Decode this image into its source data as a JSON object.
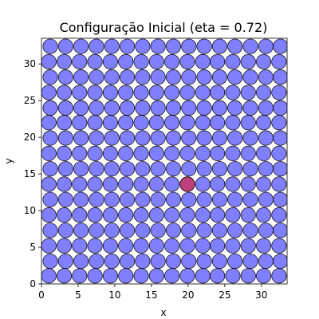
{
  "chart_data": {
    "type": "scatter",
    "title": "Configuração Inicial (eta = 0.72)",
    "xlabel": "x",
    "ylabel": "y",
    "xlim": [
      0,
      33.5
    ],
    "ylim": [
      0,
      33.5
    ],
    "xticks": [
      0,
      5,
      10,
      15,
      20,
      25,
      30
    ],
    "yticks": [
      0,
      5,
      10,
      15,
      20,
      25,
      30
    ],
    "grid": false,
    "particle_diameter": 2.0,
    "lattice": {
      "rows": 16,
      "cols": 16,
      "y_values": [
        1.1,
        3.1,
        5.2,
        7.3,
        9.4,
        11.5,
        13.6,
        15.7,
        17.8,
        19.9,
        22.0,
        24.0,
        26.1,
        28.2,
        30.3,
        32.4
      ],
      "x_even_rows": [
        1.0,
        3.1,
        5.2,
        7.3,
        9.4,
        11.5,
        13.6,
        15.7,
        17.8,
        19.9,
        22.0,
        24.0,
        26.1,
        28.2,
        30.3,
        32.4
      ],
      "x_odd_rows": [
        1.2,
        3.3,
        5.4,
        7.5,
        9.6,
        11.7,
        13.8,
        15.9,
        18.0,
        20.1,
        22.2,
        24.3,
        26.4,
        28.5,
        30.6,
        32.6
      ]
    },
    "highlighted": {
      "x": 19.9,
      "y": 13.6
    },
    "colors": {
      "particle": "#0000ff",
      "highlight": "#ff0000",
      "particle_opacity": 0.5
    }
  }
}
